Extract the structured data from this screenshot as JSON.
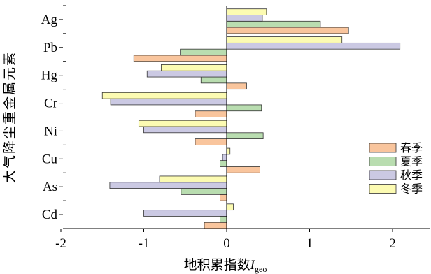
{
  "chart_data": {
    "type": "bar",
    "orientation": "horizontal",
    "categories": [
      "Ag",
      "Pb",
      "Hg",
      "Cr",
      "Ni",
      "Cu",
      "As",
      "Cd"
    ],
    "series": [
      {
        "name": "春季",
        "color": "#F9C59D",
        "values": [
          1.47,
          -1.12,
          0.24,
          -0.38,
          -0.38,
          0.4,
          -0.08,
          -0.27
        ]
      },
      {
        "name": "夏季",
        "color": "#B9DDB0",
        "values": [
          1.13,
          -0.56,
          -0.31,
          0.42,
          0.44,
          -0.08,
          -0.55,
          -0.08
        ]
      },
      {
        "name": "秋季",
        "color": "#CBC9E3",
        "values": [
          0.43,
          2.09,
          -0.96,
          -1.4,
          -1.0,
          -0.05,
          -1.41,
          -1.0
        ]
      },
      {
        "name": "冬季",
        "color": "#FCFBB2",
        "values": [
          0.48,
          1.39,
          -0.79,
          -1.5,
          -1.06,
          0.04,
          -0.81,
          0.08
        ]
      }
    ],
    "xlim": [
      -2,
      2.5
    ],
    "xticks": [
      -2,
      -1,
      0,
      1,
      2
    ],
    "xtick_labels": [
      "-2",
      "-1",
      "0",
      "1",
      "2"
    ],
    "xlabel": "地积累指数",
    "xlabel_symbol": "I",
    "xlabel_subscript": "geo",
    "ylabel": "大气降尘重金属元素",
    "legend_position": "right",
    "grid": false
  }
}
